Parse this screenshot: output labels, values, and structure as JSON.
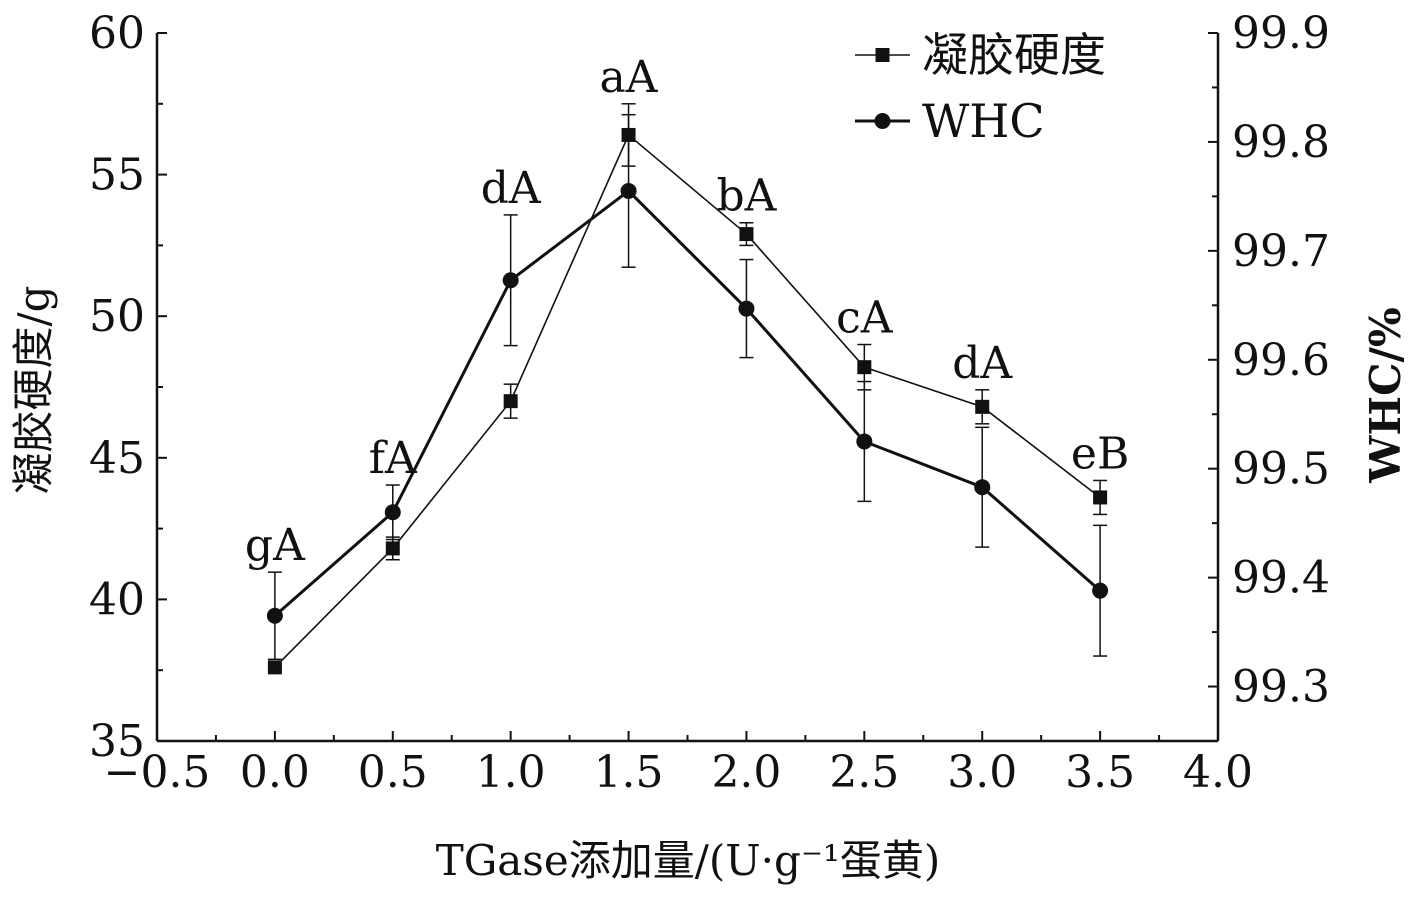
{
  "chart_data": {
    "type": "line",
    "xlabel": "TGase添加量/(U·g⁻¹蛋黄)",
    "ylabel_left": "凝胶硬度/g",
    "ylabel_right": "WHC/%",
    "xlim": [
      -0.5,
      4.0
    ],
    "ylim_left": [
      35,
      60
    ],
    "ylim_right": [
      99.25,
      99.9
    ],
    "x_ticks": [
      "−0.5",
      "0.0",
      "0.5",
      "1.0",
      "1.5",
      "2.0",
      "2.5",
      "3.0",
      "3.5",
      "4.0"
    ],
    "y_ticks_left": [
      "35",
      "40",
      "45",
      "50",
      "55",
      "60"
    ],
    "y_ticks_right": [
      "99.3",
      "99.4",
      "99.5",
      "99.6",
      "99.7",
      "99.8",
      "99.9"
    ],
    "legend_position": "top-right",
    "series": [
      {
        "name": "凝胶硬度",
        "axis": "left",
        "marker": "square",
        "line_width": "thin",
        "x": [
          0.0,
          0.5,
          1.0,
          1.5,
          2.0,
          2.5,
          3.0,
          3.5
        ],
        "values": [
          37.6,
          41.8,
          47.0,
          56.4,
          52.9,
          48.2,
          46.8,
          43.6
        ],
        "errors": [
          0.1,
          0.4,
          0.6,
          1.1,
          0.4,
          0.8,
          0.6,
          0.6
        ],
        "labels": [
          "gA",
          "fA",
          "dA",
          "aA",
          "bA",
          "cA",
          "dA",
          "eB"
        ]
      },
      {
        "name": "WHC",
        "axis": "right",
        "marker": "circle",
        "line_width": "thick",
        "x": [
          0.0,
          0.5,
          1.0,
          1.5,
          2.0,
          2.5,
          3.0,
          3.5
        ],
        "values": [
          99.365,
          99.46,
          99.673,
          99.755,
          99.647,
          99.525,
          99.483,
          99.388
        ],
        "errors": [
          0.04,
          0.025,
          0.06,
          0.07,
          0.045,
          0.055,
          0.055,
          0.06
        ]
      }
    ]
  }
}
